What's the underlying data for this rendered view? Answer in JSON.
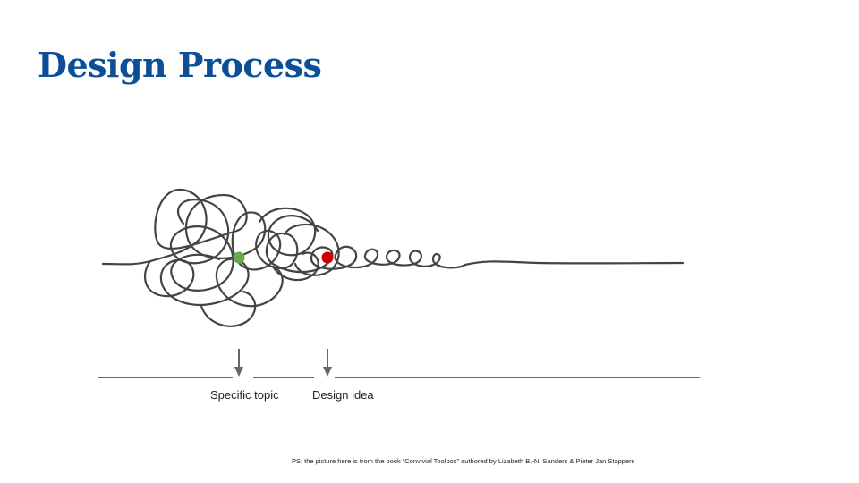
{
  "title": "Design Process",
  "labels": {
    "specific_topic": "Specific topic",
    "design_idea": "Design idea"
  },
  "footnote": "PS: the picture here is from the book “Convivial Toolbox” authored by Lizabeth B.-N. Sanders & Pieter Jan Stappers",
  "colors": {
    "title": "#0b4f99",
    "squiggle": "#444444",
    "timeline": "#666666",
    "specific_topic_dot": "#6aa84f",
    "design_idea_dot": "#cc0000"
  }
}
